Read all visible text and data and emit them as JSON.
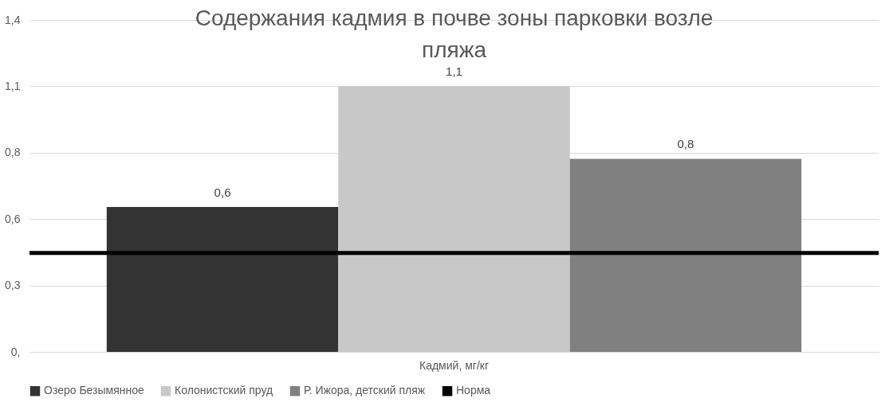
{
  "chart_data": {
    "type": "bar",
    "title": "Содержания кадмия в почве зоны парковки возле пляжа",
    "categories": [
      "Кадмий, мг/кг"
    ],
    "series": [
      {
        "name": "Озеро Безымянное",
        "color": "#333333",
        "values": [
          0.6
        ],
        "value_labels": [
          "0,6"
        ]
      },
      {
        "name": "Колонистский пруд",
        "color": "#c8c8c8",
        "values": [
          1.1
        ],
        "value_labels": [
          "1,1"
        ]
      },
      {
        "name": "Р. Ижора, детский пляж",
        "color": "#808080",
        "values": [
          0.8
        ],
        "value_labels": [
          "0,8"
        ]
      }
    ],
    "ref_lines": [
      {
        "axis": "y",
        "value": 0.41,
        "label": "Норма",
        "color": "#000000"
      }
    ],
    "ylim": [
      0,
      1.375
    ],
    "yticks": [
      {
        "value": 0,
        "label": "0,"
      },
      {
        "value": 0.275,
        "label": "0,3"
      },
      {
        "value": 0.55,
        "label": "0,6"
      },
      {
        "value": 0.825,
        "label": "0,8"
      },
      {
        "value": 1.1,
        "label": "1,1"
      },
      {
        "value": 1.375,
        "label": "1,4"
      }
    ],
    "grid": true,
    "legend": "bottom"
  }
}
